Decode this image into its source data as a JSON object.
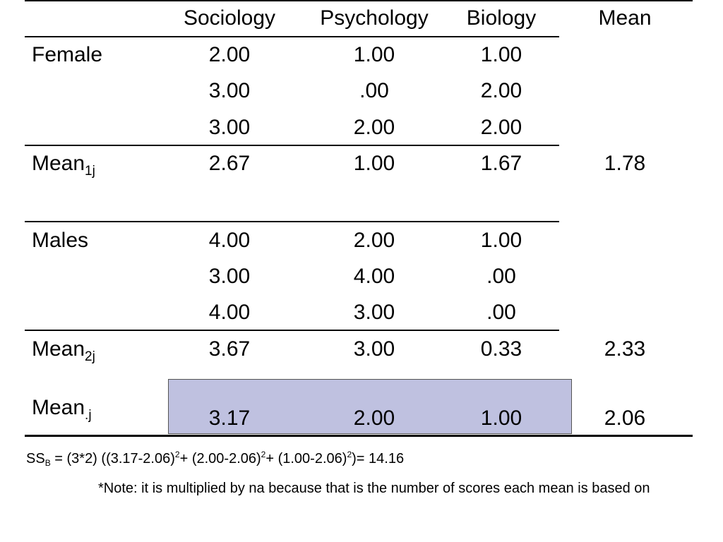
{
  "header": {
    "col1": "Sociology",
    "col2": "Psychology",
    "col3": "Biology",
    "col4": "Mean"
  },
  "female": {
    "label": "Female",
    "rows": [
      [
        "2.00",
        "1.00",
        "1.00"
      ],
      [
        "3.00",
        ".00",
        "2.00"
      ],
      [
        "3.00",
        "2.00",
        "2.00"
      ]
    ],
    "mean_label": "Mean",
    "mean_sub": "1j",
    "means": [
      "2.67",
      "1.00",
      "1.67"
    ],
    "overall_mean": "1.78"
  },
  "males": {
    "label": "Males",
    "rows": [
      [
        "4.00",
        "2.00",
        "1.00"
      ],
      [
        "3.00",
        "4.00",
        ".00"
      ],
      [
        "4.00",
        "3.00",
        ".00"
      ]
    ],
    "mean_label": "Mean",
    "mean_sub": "2j",
    "means": [
      "3.67",
      "3.00",
      "0.33"
    ],
    "overall_mean": "2.33"
  },
  "column_means": {
    "label": "Mean",
    "sub": ".j",
    "values": [
      "3.17",
      "2.00",
      "1.00"
    ],
    "grand_mean": "2.06"
  },
  "formula": {
    "ss": "SS",
    "ss_sub": "B",
    "part1": " = (3*2) ((3.17-2.06)",
    "sq1": "2",
    "part2": "+ (2.00-2.06)",
    "sq2": "2",
    "part3": "+ (1.00-2.06)",
    "sq3": "2",
    "part4": ")= 14.16"
  },
  "note": "*Note: it is multiplied by na because that is the number of scores each mean is based on",
  "colors": {
    "highlight": "#bfc1e0"
  }
}
